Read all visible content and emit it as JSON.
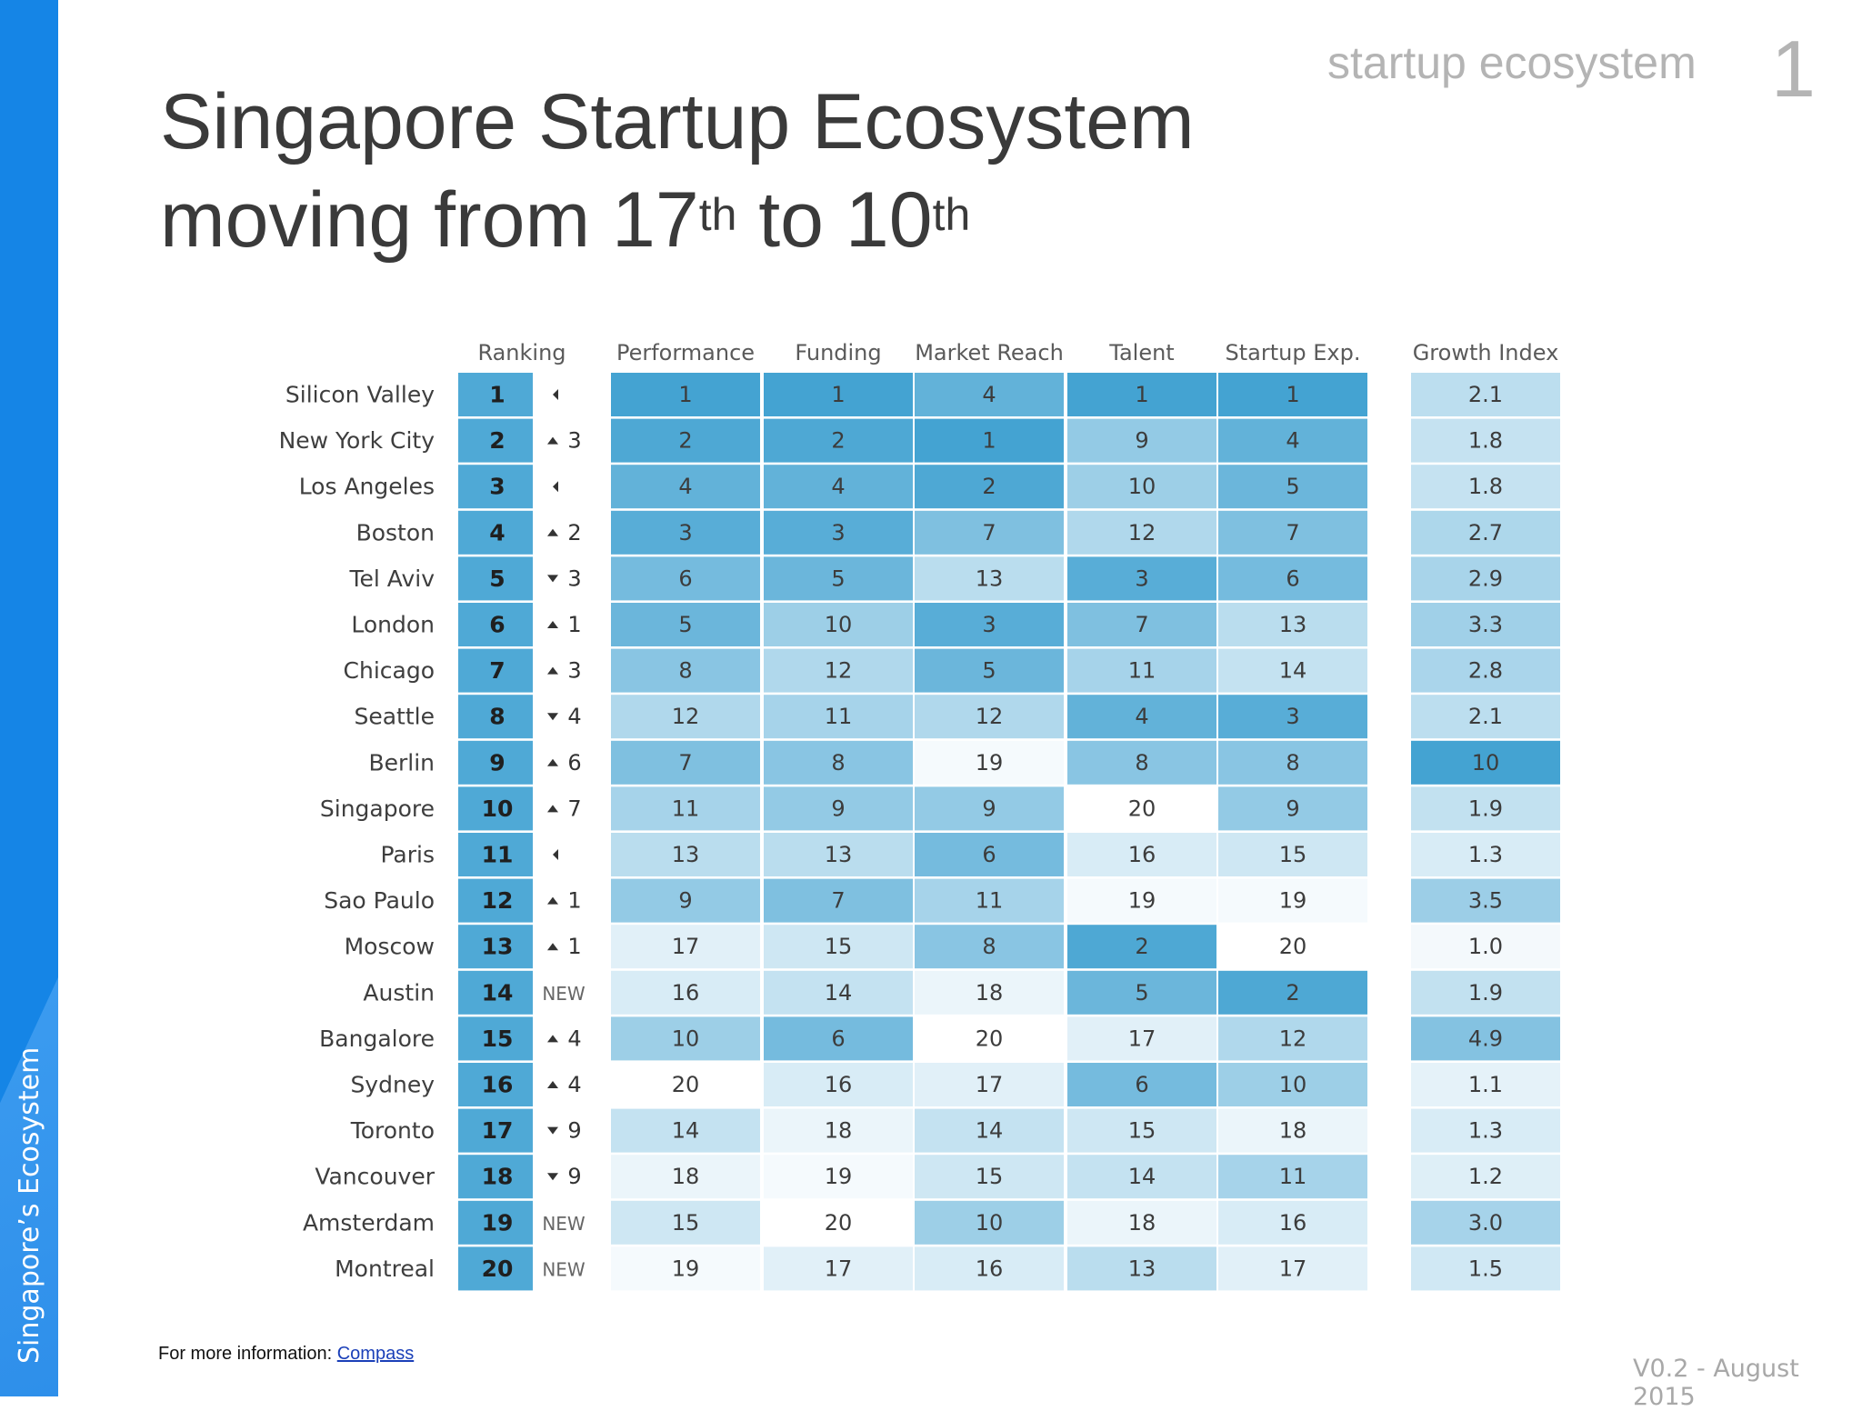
{
  "slide": {
    "title_line1": "Singapore Startup Ecosystem",
    "title_line2_prefix": "moving from 17",
    "title_line2_sup1": "th",
    "title_line2_mid": " to 10",
    "title_line2_sup2": "th",
    "section_tag": "startup ecosystem",
    "page_number": "1",
    "sidebar_label": "Singapore’s Ecosystem",
    "footer_prefix": "For more information: ",
    "footer_link": "Compass",
    "version": "V0.2 - August 2015"
  },
  "colors": {
    "sidebar": "#1585e6",
    "heat_low": "#ffffff",
    "heat_high": "#44a3d2"
  },
  "chart_data": {
    "type": "heatmap",
    "title": "",
    "columns": [
      "Ranking",
      "Performance",
      "Funding",
      "Market Reach",
      "Talent",
      "Startup Exp.",
      "Growth Index"
    ],
    "rows": [
      {
        "city": "Silicon Valley",
        "rank": 1,
        "change": "",
        "change_dir": "same",
        "performance": 1,
        "funding": 1,
        "market_reach": 4,
        "talent": 1,
        "startup_exp": 1,
        "growth_index": "2.1"
      },
      {
        "city": "New York City",
        "rank": 2,
        "change": "3",
        "change_dir": "up",
        "performance": 2,
        "funding": 2,
        "market_reach": 1,
        "talent": 9,
        "startup_exp": 4,
        "growth_index": "1.8"
      },
      {
        "city": "Los Angeles",
        "rank": 3,
        "change": "",
        "change_dir": "same",
        "performance": 4,
        "funding": 4,
        "market_reach": 2,
        "talent": 10,
        "startup_exp": 5,
        "growth_index": "1.8"
      },
      {
        "city": "Boston",
        "rank": 4,
        "change": "2",
        "change_dir": "up",
        "performance": 3,
        "funding": 3,
        "market_reach": 7,
        "talent": 12,
        "startup_exp": 7,
        "growth_index": "2.7"
      },
      {
        "city": "Tel Aviv",
        "rank": 5,
        "change": "3",
        "change_dir": "down",
        "performance": 6,
        "funding": 5,
        "market_reach": 13,
        "talent": 3,
        "startup_exp": 6,
        "growth_index": "2.9"
      },
      {
        "city": "London",
        "rank": 6,
        "change": "1",
        "change_dir": "up",
        "performance": 5,
        "funding": 10,
        "market_reach": 3,
        "talent": 7,
        "startup_exp": 13,
        "growth_index": "3.3"
      },
      {
        "city": "Chicago",
        "rank": 7,
        "change": "3",
        "change_dir": "up",
        "performance": 8,
        "funding": 12,
        "market_reach": 5,
        "talent": 11,
        "startup_exp": 14,
        "growth_index": "2.8"
      },
      {
        "city": "Seattle",
        "rank": 8,
        "change": "4",
        "change_dir": "down",
        "performance": 12,
        "funding": 11,
        "market_reach": 12,
        "talent": 4,
        "startup_exp": 3,
        "growth_index": "2.1"
      },
      {
        "city": "Berlin",
        "rank": 9,
        "change": "6",
        "change_dir": "up",
        "performance": 7,
        "funding": 8,
        "market_reach": 19,
        "talent": 8,
        "startup_exp": 8,
        "growth_index": "10"
      },
      {
        "city": "Singapore",
        "rank": 10,
        "change": "7",
        "change_dir": "up",
        "performance": 11,
        "funding": 9,
        "market_reach": 9,
        "talent": 20,
        "startup_exp": 9,
        "growth_index": "1.9"
      },
      {
        "city": "Paris",
        "rank": 11,
        "change": "",
        "change_dir": "same",
        "performance": 13,
        "funding": 13,
        "market_reach": 6,
        "talent": 16,
        "startup_exp": 15,
        "growth_index": "1.3"
      },
      {
        "city": "Sao Paulo",
        "rank": 12,
        "change": "1",
        "change_dir": "up",
        "performance": 9,
        "funding": 7,
        "market_reach": 11,
        "talent": 19,
        "startup_exp": 19,
        "growth_index": "3.5"
      },
      {
        "city": "Moscow",
        "rank": 13,
        "change": "1",
        "change_dir": "up",
        "performance": 17,
        "funding": 15,
        "market_reach": 8,
        "talent": 2,
        "startup_exp": 20,
        "growth_index": "1.0"
      },
      {
        "city": "Austin",
        "rank": 14,
        "change": "NEW",
        "change_dir": "new",
        "performance": 16,
        "funding": 14,
        "market_reach": 18,
        "talent": 5,
        "startup_exp": 2,
        "growth_index": "1.9"
      },
      {
        "city": "Bangalore",
        "rank": 15,
        "change": "4",
        "change_dir": "up",
        "performance": 10,
        "funding": 6,
        "market_reach": 20,
        "talent": 17,
        "startup_exp": 12,
        "growth_index": "4.9"
      },
      {
        "city": "Sydney",
        "rank": 16,
        "change": "4",
        "change_dir": "up",
        "performance": 20,
        "funding": 16,
        "market_reach": 17,
        "talent": 6,
        "startup_exp": 10,
        "growth_index": "1.1"
      },
      {
        "city": "Toronto",
        "rank": 17,
        "change": "9",
        "change_dir": "down",
        "performance": 14,
        "funding": 18,
        "market_reach": 14,
        "talent": 15,
        "startup_exp": 18,
        "growth_index": "1.3"
      },
      {
        "city": "Vancouver",
        "rank": 18,
        "change": "9",
        "change_dir": "down",
        "performance": 18,
        "funding": 19,
        "market_reach": 15,
        "talent": 14,
        "startup_exp": 11,
        "growth_index": "1.2"
      },
      {
        "city": "Amsterdam",
        "rank": 19,
        "change": "NEW",
        "change_dir": "new",
        "performance": 15,
        "funding": 20,
        "market_reach": 10,
        "talent": 18,
        "startup_exp": 16,
        "growth_index": "3.0"
      },
      {
        "city": "Montreal",
        "rank": 20,
        "change": "NEW",
        "change_dir": "new",
        "performance": 19,
        "funding": 17,
        "market_reach": 16,
        "talent": 13,
        "startup_exp": 17,
        "growth_index": "1.5"
      }
    ]
  }
}
